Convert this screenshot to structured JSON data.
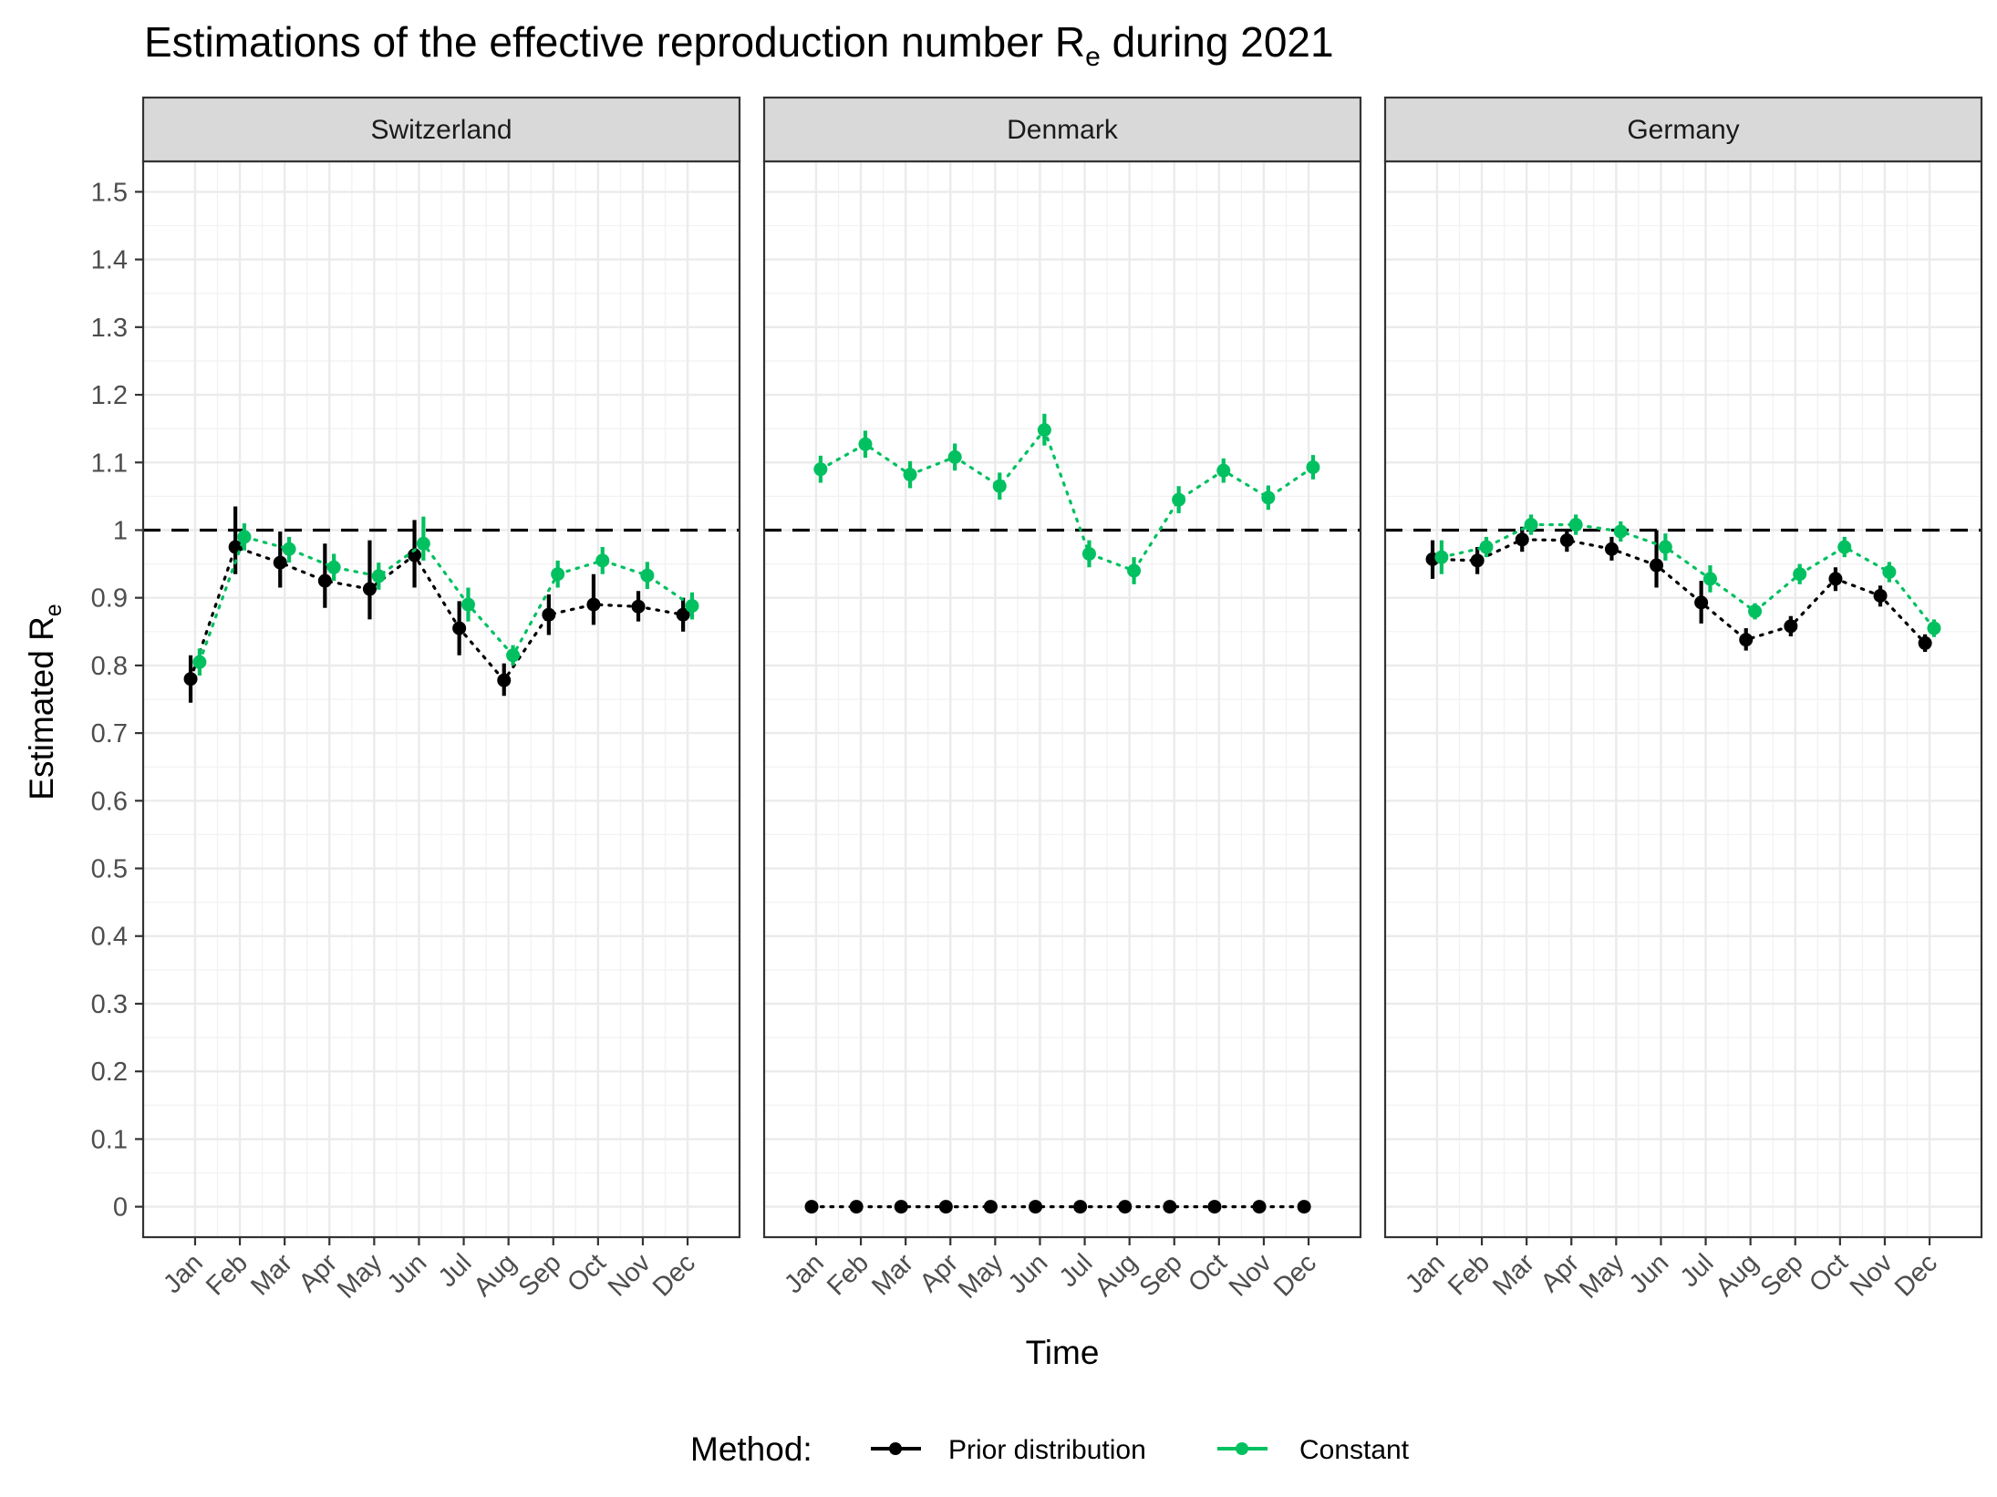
{
  "chart_data": {
    "type": "line",
    "title_main": "Estimations of the effective reproduction number R",
    "title_sub": "e",
    "title_tail": " during 2021",
    "xlabel": "Time",
    "ylabel_main": "Estimated R",
    "ylabel_sub": "e",
    "legend_title": "Method:",
    "legend_position": "bottom",
    "grid": true,
    "ylim": [
      -0.045,
      1.545
    ],
    "yticks": [
      0,
      0.1,
      0.2,
      0.3,
      0.4,
      0.5,
      0.6,
      0.7,
      0.8,
      0.9,
      1,
      1.1,
      1.2,
      1.3,
      1.4,
      1.5
    ],
    "ytick_labels": [
      "0",
      "0.1",
      "0.2",
      "0.3",
      "0.4",
      "0.5",
      "0.6",
      "0.7",
      "0.8",
      "0.9",
      "1",
      "1.1",
      "1.2",
      "1.3",
      "1.4",
      "1.5"
    ],
    "categories": [
      "Jan",
      "Feb",
      "Mar",
      "Apr",
      "May",
      "Jun",
      "Jul",
      "Aug",
      "Sep",
      "Oct",
      "Nov",
      "Dec"
    ],
    "reference_line": 1,
    "series_styles": [
      {
        "name": "Prior distribution",
        "color": "#000000"
      },
      {
        "name": "Constant",
        "color": "#00c060"
      }
    ],
    "panels": [
      {
        "name": "Switzerland",
        "series": [
          {
            "name": "Prior distribution",
            "values": [
              0.78,
              0.975,
              0.952,
              0.925,
              0.913,
              0.963,
              0.855,
              0.778,
              0.875,
              0.89,
              0.887,
              0.875
            ],
            "lower": [
              0.745,
              0.935,
              0.915,
              0.885,
              0.868,
              0.915,
              0.815,
              0.755,
              0.845,
              0.86,
              0.865,
              0.85
            ],
            "upper": [
              0.815,
              1.035,
              0.998,
              0.98,
              0.985,
              1.015,
              0.895,
              0.803,
              0.905,
              0.935,
              0.91,
              0.9
            ]
          },
          {
            "name": "Constant",
            "values": [
              0.805,
              0.99,
              0.972,
              0.945,
              0.932,
              0.98,
              0.89,
              0.815,
              0.935,
              0.955,
              0.933,
              0.888
            ],
            "lower": [
              0.785,
              0.97,
              0.952,
              0.925,
              0.912,
              0.955,
              0.865,
              0.8,
              0.915,
              0.935,
              0.913,
              0.868
            ],
            "upper": [
              0.825,
              1.01,
              0.99,
              0.965,
              0.952,
              1.02,
              0.915,
              0.83,
              0.955,
              0.975,
              0.953,
              0.908
            ]
          }
        ]
      },
      {
        "name": "Denmark",
        "series": [
          {
            "name": "Prior distribution",
            "values": [
              0,
              0,
              0,
              0,
              0,
              0,
              0,
              0,
              0,
              0,
              0,
              0
            ],
            "lower": [
              0,
              0,
              0,
              0,
              0,
              0,
              0,
              0,
              0,
              0,
              0,
              0
            ],
            "upper": [
              0,
              0,
              0,
              0,
              0,
              0,
              0,
              0,
              0,
              0,
              0,
              0
            ]
          },
          {
            "name": "Constant",
            "values": [
              1.09,
              1.127,
              1.082,
              1.108,
              1.065,
              1.148,
              0.965,
              0.94,
              1.045,
              1.088,
              1.048,
              1.093
            ],
            "lower": [
              1.07,
              1.107,
              1.062,
              1.088,
              1.045,
              1.125,
              0.945,
              0.92,
              1.025,
              1.07,
              1.03,
              1.075
            ],
            "upper": [
              1.11,
              1.147,
              1.102,
              1.128,
              1.085,
              1.172,
              0.985,
              0.96,
              1.065,
              1.106,
              1.066,
              1.111
            ]
          }
        ]
      },
      {
        "name": "Germany",
        "series": [
          {
            "name": "Prior distribution",
            "values": [
              0.957,
              0.955,
              0.986,
              0.985,
              0.972,
              0.948,
              0.893,
              0.838,
              0.858,
              0.928,
              0.903,
              0.833
            ],
            "lower": [
              0.928,
              0.935,
              0.968,
              0.968,
              0.955,
              0.915,
              0.862,
              0.822,
              0.843,
              0.91,
              0.887,
              0.82
            ],
            "upper": [
              0.985,
              0.975,
              1.005,
              1.002,
              0.99,
              1.0,
              0.925,
              0.855,
              0.873,
              0.945,
              0.918,
              0.846
            ]
          },
          {
            "name": "Constant",
            "values": [
              0.96,
              0.975,
              1.008,
              1.008,
              0.998,
              0.975,
              0.928,
              0.88,
              0.935,
              0.975,
              0.938,
              0.855
            ],
            "lower": [
              0.935,
              0.96,
              0.993,
              0.993,
              0.983,
              0.955,
              0.908,
              0.868,
              0.92,
              0.96,
              0.923,
              0.842
            ],
            "upper": [
              0.985,
              0.99,
              1.023,
              1.023,
              1.013,
              0.995,
              0.948,
              0.892,
              0.95,
              0.99,
              0.953,
              0.868
            ]
          }
        ]
      }
    ]
  }
}
